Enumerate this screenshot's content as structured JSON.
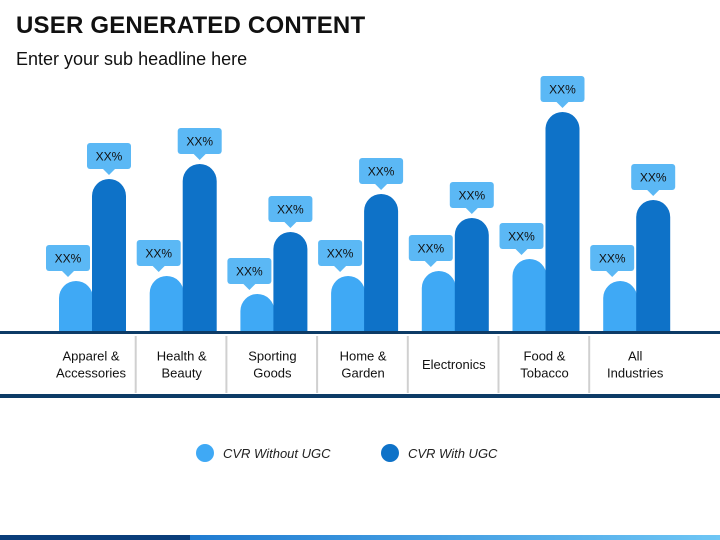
{
  "header": {
    "title": "USER GENERATED CONTENT",
    "subtitle": "Enter your sub headline here"
  },
  "colors": {
    "without_ugc": "#3fa9f5",
    "with_ugc": "#0e72c8",
    "baseline": "#0d3b66",
    "divider": "#d0d0d0",
    "callout": "#5bb8f5"
  },
  "chart_data": {
    "type": "bar",
    "categories": [
      [
        "Apparel &",
        "Accessories"
      ],
      [
        "Health &",
        "Beauty"
      ],
      [
        "Sporting",
        "Goods"
      ],
      [
        "Home &",
        "Garden"
      ],
      [
        "Electronics"
      ],
      [
        "Food &",
        "Tobacco"
      ],
      [
        "All",
        "Industries"
      ]
    ],
    "series": [
      {
        "name": "CVR Without UGC",
        "values": [
          50,
          55,
          37,
          55,
          60,
          72,
          50
        ],
        "labels": [
          "XX%",
          "XX%",
          "XX%",
          "XX%",
          "XX%",
          "XX%",
          "XX%"
        ]
      },
      {
        "name": "CVR With UGC",
        "values": [
          152,
          167,
          99,
          137,
          113,
          219,
          131
        ],
        "labels": [
          "XX%",
          "XX%",
          "XX%",
          "XX%",
          "XX%",
          "XX%",
          "XX%"
        ]
      }
    ],
    "ylim": [
      0,
      240
    ],
    "grid": false,
    "legend_position": "bottom-center"
  }
}
